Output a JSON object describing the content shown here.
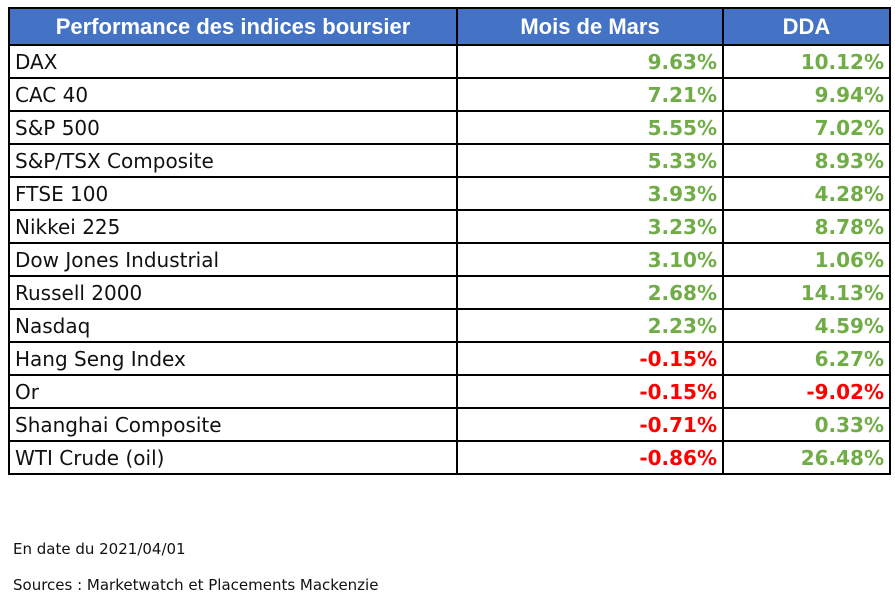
{
  "table": {
    "headers": [
      "Performance des indices boursier",
      "Mois de Mars",
      "DDA"
    ],
    "rows": [
      {
        "name": "DAX",
        "march": "9.63%",
        "ytd": "10.12%"
      },
      {
        "name": "CAC 40",
        "march": "7.21%",
        "ytd": "9.94%"
      },
      {
        "name": "S&P 500",
        "march": "5.55%",
        "ytd": "7.02%"
      },
      {
        "name": "S&P/TSX Composite",
        "march": "5.33%",
        "ytd": "8.93%"
      },
      {
        "name": "FTSE 100",
        "march": "3.93%",
        "ytd": "4.28%"
      },
      {
        "name": "Nikkei 225",
        "march": "3.23%",
        "ytd": "8.78%"
      },
      {
        "name": "Dow Jones Industrial",
        "march": "3.10%",
        "ytd": "1.06%"
      },
      {
        "name": "Russell 2000",
        "march": "2.68%",
        "ytd": "14.13%"
      },
      {
        "name": "Nasdaq",
        "march": "2.23%",
        "ytd": "4.59%"
      },
      {
        "name": "Hang Seng Index",
        "march": "-0.15%",
        "ytd": "6.27%"
      },
      {
        "name": "Or",
        "march": "-0.15%",
        "ytd": "-9.02%"
      },
      {
        "name": "Shanghai Composite",
        "march": "-0.71%",
        "ytd": "0.33%"
      },
      {
        "name": "WTI Crude (oil)",
        "march": "-0.86%",
        "ytd": "26.48%"
      }
    ]
  },
  "footer": {
    "date_note": "En date du 2021/04/01",
    "sources": "Sources : Marketwatch et Placements Mackenzie"
  },
  "colors": {
    "header_bg": "#4472c4",
    "header_text": "#ffffff",
    "positive": "#70ad47",
    "negative": "#ff0000"
  }
}
